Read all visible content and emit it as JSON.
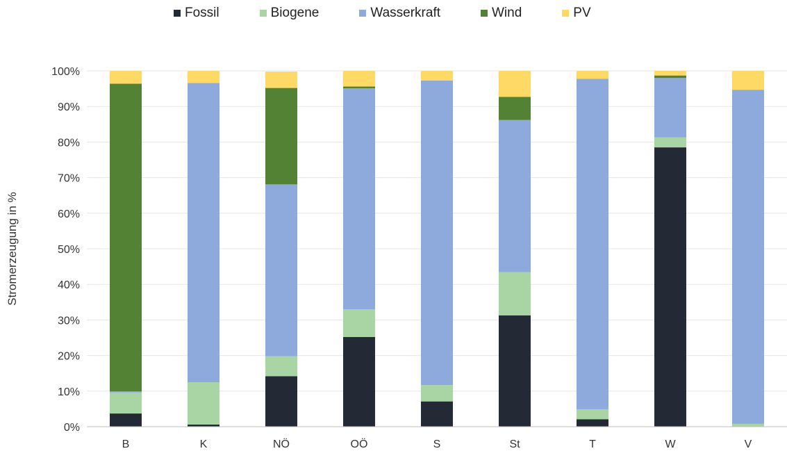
{
  "chart_data": {
    "type": "bar",
    "stacked": true,
    "categories": [
      "B",
      "K",
      "NÖ",
      "OÖ",
      "S",
      "St",
      "T",
      "W",
      "V"
    ],
    "ylabel": "Stromerzeugung in %",
    "xlabel": "",
    "ylim": [
      0,
      100
    ],
    "yticks": [
      "0%",
      "10%",
      "20%",
      "30%",
      "40%",
      "50%",
      "60%",
      "70%",
      "80%",
      "90%",
      "100%"
    ],
    "grid": true,
    "legend_position": "top",
    "series": [
      {
        "name": "Fossil",
        "color": "#232a36",
        "values": [
          3.7,
          0.6,
          14.2,
          25.2,
          7.1,
          31.3,
          2.1,
          78.5,
          0.0
        ]
      },
      {
        "name": "Biogene",
        "color": "#a9d5a4",
        "values": [
          5.9,
          11.9,
          5.6,
          7.8,
          4.6,
          12.1,
          2.8,
          2.8,
          0.8
        ]
      },
      {
        "name": "Wasserkraft",
        "color": "#8eaadc",
        "values": [
          0.3,
          84.1,
          48.3,
          62.1,
          85.6,
          42.8,
          92.9,
          16.7,
          93.9
        ]
      },
      {
        "name": "Wind",
        "color": "#548235",
        "values": [
          86.5,
          0.0,
          27.1,
          0.5,
          0.0,
          6.5,
          0.0,
          0.7,
          0.0
        ]
      },
      {
        "name": "PV",
        "color": "#ffd965",
        "values": [
          3.6,
          3.4,
          4.6,
          4.4,
          2.7,
          7.3,
          2.2,
          1.3,
          5.3
        ]
      }
    ]
  }
}
